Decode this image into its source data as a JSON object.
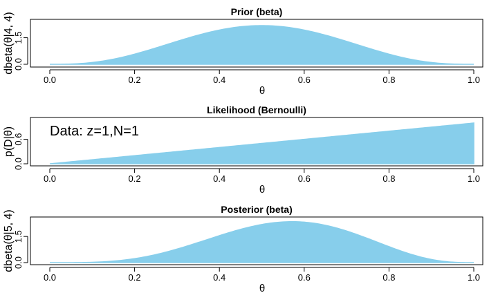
{
  "chart_data": [
    {
      "type": "area",
      "title": "Prior (beta)",
      "xlabel": "θ",
      "ylabel": "dbeta(θ|4, 4)",
      "xlim": [
        0,
        1
      ],
      "ylim": [
        0,
        2.1875
      ],
      "x_ticks": [
        "0.0",
        "0.2",
        "0.4",
        "0.6",
        "0.8",
        "1.0"
      ],
      "y_ticks": [
        "0.0",
        "1.5"
      ],
      "distribution": {
        "family": "beta",
        "a": 4,
        "b": 4
      },
      "color": "#87CEEB",
      "grid": false,
      "annotation": ""
    },
    {
      "type": "area",
      "title": "Likelihood (Bernoulli)",
      "xlabel": "θ",
      "ylabel": "p(D|θ)",
      "xlim": [
        0,
        1
      ],
      "ylim": [
        0,
        1
      ],
      "x_ticks": [
        "0.0",
        "0.2",
        "0.4",
        "0.6",
        "0.8",
        "1.0"
      ],
      "y_ticks": [
        "0.0",
        "0.6"
      ],
      "distribution": {
        "family": "bernoulli_likelihood",
        "z": 1,
        "N": 1
      },
      "color": "#87CEEB",
      "grid": false,
      "annotation": "Data: z=1,N=1"
    },
    {
      "type": "area",
      "title": "Posterior (beta)",
      "xlabel": "θ",
      "ylabel": "dbeta(θ|5, 4)",
      "xlim": [
        0,
        1
      ],
      "ylim": [
        0,
        2.3
      ],
      "x_ticks": [
        "0.0",
        "0.2",
        "0.4",
        "0.6",
        "0.8",
        "1.0"
      ],
      "y_ticks": [
        "0.0",
        "1.5"
      ],
      "distribution": {
        "family": "beta",
        "a": 5,
        "b": 4
      },
      "color": "#87CEEB",
      "grid": false,
      "annotation": ""
    }
  ]
}
